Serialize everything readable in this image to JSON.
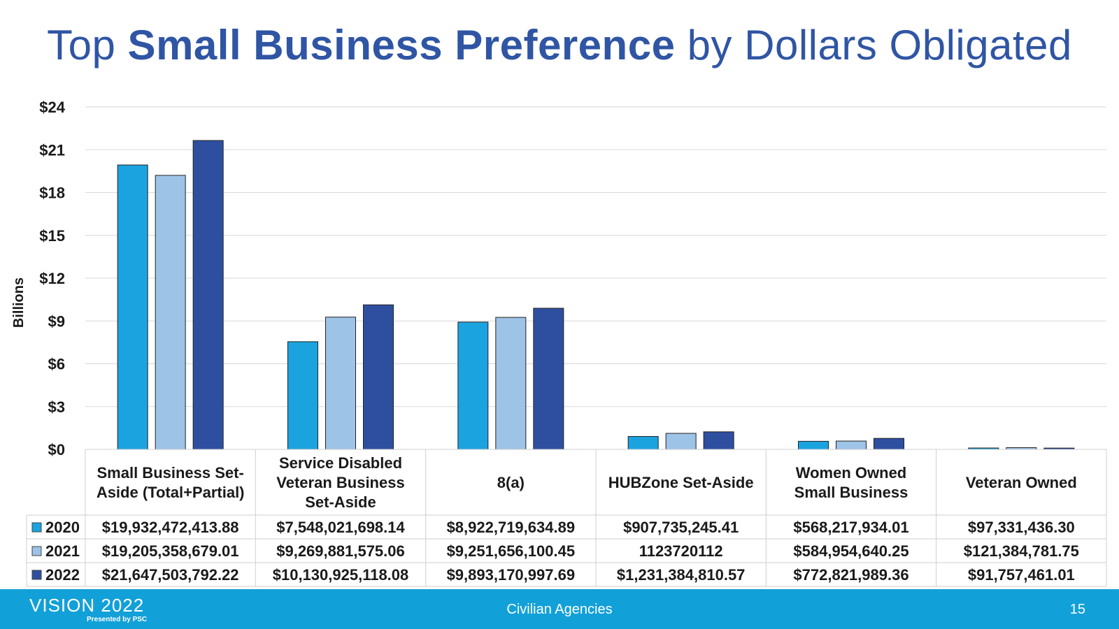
{
  "title": {
    "part1": "Top ",
    "bold": "Small Business Preference",
    "part2": " by Dollars Obligated"
  },
  "chart_data": {
    "type": "bar",
    "title": "Top Small Business Preference by Dollars Obligated",
    "ylabel": "Billions",
    "ylim": [
      0,
      24
    ],
    "yticks": [
      "$0",
      "$3",
      "$6",
      "$9",
      "$12",
      "$15",
      "$18",
      "$21",
      "$24"
    ],
    "ytick_values": [
      0,
      3,
      6,
      9,
      12,
      15,
      18,
      21,
      24
    ],
    "grid": true,
    "categories": [
      [
        "Small Business Set-",
        "Aside (Total+Partial)"
      ],
      [
        "Service Disabled",
        "Veteran Business",
        "Set-Aside"
      ],
      [
        "8(a)"
      ],
      [
        "HUBZone Set-Aside"
      ],
      [
        "Women Owned",
        "Small Business"
      ],
      [
        "Veteran Owned"
      ]
    ],
    "series": [
      {
        "name": "2020",
        "color": "#1ba3e0",
        "values": [
          19.93247241388,
          7.54802169814,
          8.92271963489,
          0.90773524541,
          0.56821793401,
          0.0973314363
        ],
        "labels": [
          "$19,932,472,413.88",
          "$7,548,021,698.14",
          "$8,922,719,634.89",
          "$907,735,245.41",
          "$568,217,934.01",
          "$97,331,436.30"
        ]
      },
      {
        "name": "2021",
        "color": "#9dc3e6",
        "values": [
          19.20535867901,
          9.26988157506,
          9.25165610045,
          1.123720112,
          0.58495464025,
          0.12138478175
        ],
        "labels": [
          "$19,205,358,679.01",
          "$9,269,881,575.06",
          "$9,251,656,100.45",
          "1123720112",
          "$584,954,640.25",
          "$121,384,781.75"
        ]
      },
      {
        "name": "2022",
        "color": "#2e4fa0",
        "values": [
          21.64750379222,
          10.13092511808,
          9.89317099769,
          1.23138481057,
          0.77282198936,
          0.09175746101
        ],
        "labels": [
          "$21,647,503,792.22",
          "$10,130,925,118.08",
          "$9,893,170,997.69",
          "$1,231,384,810.57",
          "$772,821,989.36",
          "$91,757,461.01"
        ]
      }
    ]
  },
  "footer": {
    "logo": "VISION 2022",
    "logo_sub": "Presented by PSC",
    "center": "Civilian Agencies",
    "page": "15"
  }
}
